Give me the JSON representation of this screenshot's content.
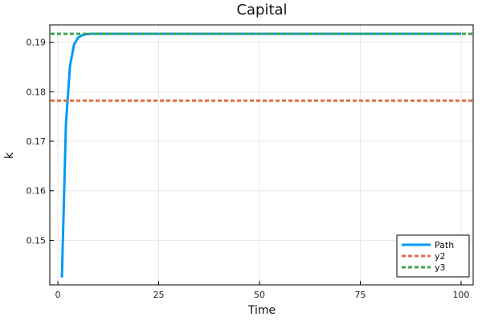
{
  "chart_data": {
    "type": "line",
    "title": "Capital",
    "xlabel": "Time",
    "ylabel": "k",
    "xlim": [
      -2,
      103
    ],
    "ylim": [
      0.141,
      0.1935
    ],
    "xticks": [
      0,
      25,
      50,
      75,
      100
    ],
    "yticks": [
      0.15,
      0.16,
      0.17,
      0.18,
      0.19
    ],
    "grid": true,
    "legend_position": "bottom-right",
    "series": [
      {
        "name": "Path",
        "style": "solid",
        "color": "#009AFA",
        "x": [
          1,
          2,
          3,
          4,
          5,
          6,
          7,
          8,
          9,
          10,
          15,
          20,
          30,
          40,
          50,
          60,
          70,
          80,
          90,
          100
        ],
        "y": [
          0.1425,
          0.1735,
          0.1852,
          0.1895,
          0.1909,
          0.1914,
          0.1916,
          0.1917,
          0.1917,
          0.1917,
          0.1917,
          0.1917,
          0.1917,
          0.1917,
          0.1917,
          0.1917,
          0.1917,
          0.1917,
          0.1917,
          0.1917
        ]
      },
      {
        "name": "y2",
        "style": "dashed",
        "color": "#E36F47",
        "value": 0.1782
      },
      {
        "name": "y3",
        "style": "dashed",
        "color": "#3EA44E",
        "value": 0.1917
      }
    ]
  }
}
